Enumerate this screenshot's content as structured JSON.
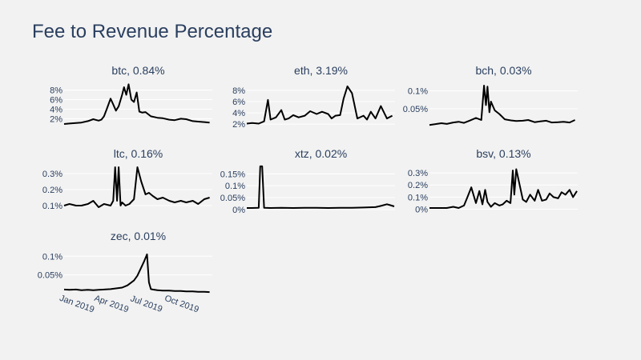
{
  "title": "Fee to Revenue Percentage",
  "chart_data": {
    "type": "line",
    "title": "Fee to Revenue Percentage",
    "xlabel": "",
    "ylabel": "",
    "grid": true,
    "x_range": [
      "2018-12-01",
      "2019-12-22"
    ],
    "x_ticks": [
      "Jan 2019",
      "Apr 2019",
      "Jul 2019",
      "Oct 2019"
    ],
    "colors": {
      "line": "#000000",
      "grid": "#ffffff",
      "background": "#f2f2f2",
      "text": "#2a3f5f"
    },
    "panels": [
      {
        "name": "btc",
        "title": "btc, 0.84%",
        "ylim": [
          0.4,
          9.6
        ],
        "y_ticks": [
          "2%",
          "4%",
          "6%",
          "8%"
        ],
        "y_tick_values": [
          2,
          4,
          6,
          8
        ],
        "x": [
          "2018-12-01",
          "2018-12-15",
          "2019-01-01",
          "2019-01-15",
          "2019-02-01",
          "2019-02-15",
          "2019-03-01",
          "2019-03-08",
          "2019-03-15",
          "2019-03-22",
          "2019-04-01",
          "2019-04-08",
          "2019-04-15",
          "2019-04-22",
          "2019-05-01",
          "2019-05-06",
          "2019-05-12",
          "2019-05-18",
          "2019-05-25",
          "2019-06-01",
          "2019-06-08",
          "2019-06-15",
          "2019-06-22",
          "2019-07-01",
          "2019-07-15",
          "2019-08-01",
          "2019-08-15",
          "2019-09-01",
          "2019-09-15",
          "2019-10-01",
          "2019-10-15",
          "2019-11-01",
          "2019-11-15",
          "2019-12-01",
          "2019-12-15"
        ],
        "y": [
          0.9,
          1.0,
          1.1,
          1.2,
          1.5,
          1.9,
          1.6,
          1.8,
          2.5,
          4.0,
          6.2,
          5.0,
          3.7,
          4.6,
          7.0,
          8.6,
          7.0,
          9.2,
          6.0,
          5.5,
          7.5,
          3.5,
          3.3,
          3.4,
          2.5,
          2.2,
          2.1,
          1.8,
          1.7,
          2.0,
          1.9,
          1.5,
          1.4,
          1.3,
          1.2
        ]
      },
      {
        "name": "eth",
        "title": "eth, 3.19%",
        "ylim": [
          1.6,
          9.4
        ],
        "y_ticks": [
          "2%",
          "4%",
          "6%",
          "8%"
        ],
        "y_tick_values": [
          2,
          4,
          6,
          8
        ],
        "x": [
          "2018-12-01",
          "2018-12-15",
          "2019-01-01",
          "2019-01-15",
          "2019-01-25",
          "2019-02-01",
          "2019-02-15",
          "2019-03-01",
          "2019-03-10",
          "2019-03-20",
          "2019-04-01",
          "2019-04-15",
          "2019-05-01",
          "2019-05-15",
          "2019-06-01",
          "2019-06-15",
          "2019-07-01",
          "2019-07-10",
          "2019-07-20",
          "2019-08-01",
          "2019-08-10",
          "2019-08-20",
          "2019-09-01",
          "2019-09-15",
          "2019-10-01",
          "2019-10-10",
          "2019-10-20",
          "2019-11-01",
          "2019-11-15",
          "2019-12-01",
          "2019-12-15"
        ],
        "y": [
          2.1,
          2.2,
          2.1,
          2.5,
          6.3,
          2.8,
          3.2,
          4.5,
          2.8,
          3.0,
          3.6,
          3.2,
          3.5,
          4.3,
          3.8,
          4.2,
          3.8,
          3.0,
          3.5,
          3.6,
          6.5,
          8.7,
          7.5,
          3.0,
          3.5,
          2.8,
          4.2,
          3.0,
          5.2,
          3.0,
          3.5
        ]
      },
      {
        "name": "bch",
        "title": "bch, 0.03%",
        "ylim": [
          0.0,
          0.124
        ],
        "y_ticks": [
          "0.05%",
          "0.1%"
        ],
        "y_tick_values": [
          0.05,
          0.1
        ],
        "x": [
          "2018-12-01",
          "2018-12-15",
          "2019-01-01",
          "2019-01-15",
          "2019-02-01",
          "2019-02-15",
          "2019-03-01",
          "2019-03-15",
          "2019-04-01",
          "2019-04-15",
          "2019-04-22",
          "2019-04-27",
          "2019-05-01",
          "2019-05-06",
          "2019-05-10",
          "2019-05-20",
          "2019-06-01",
          "2019-06-15",
          "2019-07-01",
          "2019-07-15",
          "2019-08-01",
          "2019-08-15",
          "2019-09-01",
          "2019-09-15",
          "2019-10-01",
          "2019-10-15",
          "2019-11-01",
          "2019-11-15",
          "2019-12-01",
          "2019-12-15"
        ],
        "y": [
          0.004,
          0.006,
          0.009,
          0.007,
          0.011,
          0.013,
          0.01,
          0.016,
          0.024,
          0.018,
          0.115,
          0.06,
          0.112,
          0.04,
          0.07,
          0.045,
          0.035,
          0.02,
          0.017,
          0.015,
          0.016,
          0.018,
          0.012,
          0.014,
          0.016,
          0.011,
          0.012,
          0.013,
          0.011,
          0.018
        ]
      },
      {
        "name": "ltc",
        "title": "ltc, 0.16%",
        "ylim": [
          0.07,
          0.35
        ],
        "y_ticks": [
          "0.1%",
          "0.2%",
          "0.3%"
        ],
        "y_tick_values": [
          0.1,
          0.2,
          0.3
        ],
        "x": [
          "2018-12-01",
          "2018-12-15",
          "2019-01-01",
          "2019-01-15",
          "2019-02-01",
          "2019-02-15",
          "2019-03-01",
          "2019-03-15",
          "2019-04-01",
          "2019-04-08",
          "2019-04-13",
          "2019-04-18",
          "2019-04-22",
          "2019-04-27",
          "2019-05-01",
          "2019-05-10",
          "2019-05-20",
          "2019-06-01",
          "2019-06-10",
          "2019-06-20",
          "2019-07-01",
          "2019-07-10",
          "2019-07-20",
          "2019-08-01",
          "2019-08-15",
          "2019-09-01",
          "2019-09-15",
          "2019-10-01",
          "2019-10-15",
          "2019-11-01",
          "2019-11-15",
          "2019-12-01",
          "2019-12-15"
        ],
        "y": [
          0.1,
          0.11,
          0.1,
          0.1,
          0.11,
          0.13,
          0.09,
          0.11,
          0.1,
          0.13,
          0.34,
          0.13,
          0.34,
          0.1,
          0.12,
          0.1,
          0.11,
          0.14,
          0.34,
          0.25,
          0.17,
          0.18,
          0.16,
          0.14,
          0.15,
          0.13,
          0.12,
          0.13,
          0.12,
          0.13,
          0.11,
          0.14,
          0.15
        ]
      },
      {
        "name": "xtz",
        "title": "xtz, 0.02%",
        "ylim": [
          -0.004,
          0.185
        ],
        "y_ticks": [
          "0%",
          "0.05%",
          "0.1%",
          "0.15%"
        ],
        "y_tick_values": [
          0,
          0.05,
          0.1,
          0.15
        ],
        "x": [
          "2018-12-01",
          "2018-12-15",
          "2019-01-01",
          "2019-01-05",
          "2019-01-10",
          "2019-01-15",
          "2019-02-01",
          "2019-03-01",
          "2019-04-01",
          "2019-05-01",
          "2019-06-01",
          "2019-07-01",
          "2019-08-01",
          "2019-09-01",
          "2019-10-01",
          "2019-11-01",
          "2019-11-15",
          "2019-12-01",
          "2019-12-10",
          "2019-12-20"
        ],
        "y": [
          0.006,
          0.006,
          0.007,
          0.182,
          0.182,
          0.007,
          0.006,
          0.007,
          0.006,
          0.007,
          0.007,
          0.006,
          0.007,
          0.007,
          0.008,
          0.01,
          0.015,
          0.022,
          0.018,
          0.013
        ]
      },
      {
        "name": "bsv",
        "title": "bsv, 0.13%",
        "ylim": [
          -0.01,
          0.36
        ],
        "y_ticks": [
          "0%",
          "0.1%",
          "0.2%",
          "0.3%"
        ],
        "y_tick_values": [
          0,
          0.1,
          0.2,
          0.3
        ],
        "x": [
          "2018-12-01",
          "2018-12-15",
          "2019-01-01",
          "2019-01-15",
          "2019-02-01",
          "2019-02-15",
          "2019-03-01",
          "2019-03-10",
          "2019-03-20",
          "2019-04-01",
          "2019-04-10",
          "2019-04-18",
          "2019-04-25",
          "2019-05-01",
          "2019-05-10",
          "2019-05-20",
          "2019-06-01",
          "2019-06-10",
          "2019-06-20",
          "2019-06-30",
          "2019-07-06",
          "2019-07-10",
          "2019-07-15",
          "2019-08-01",
          "2019-08-10",
          "2019-08-20",
          "2019-09-01",
          "2019-09-10",
          "2019-09-20",
          "2019-10-01",
          "2019-10-10",
          "2019-10-20",
          "2019-11-01",
          "2019-11-10",
          "2019-11-20",
          "2019-12-01",
          "2019-12-10",
          "2019-12-20"
        ],
        "y": [
          0.01,
          0.01,
          0.01,
          0.01,
          0.02,
          0.01,
          0.03,
          0.1,
          0.18,
          0.05,
          0.15,
          0.04,
          0.16,
          0.06,
          0.02,
          0.05,
          0.03,
          0.04,
          0.07,
          0.05,
          0.32,
          0.12,
          0.33,
          0.08,
          0.06,
          0.12,
          0.07,
          0.16,
          0.07,
          0.08,
          0.13,
          0.1,
          0.09,
          0.14,
          0.12,
          0.16,
          0.1,
          0.15
        ]
      },
      {
        "name": "zec",
        "title": "zec, 0.01%",
        "ylim": [
          0.0,
          0.122
        ],
        "y_ticks": [
          "0.05%",
          "0.1%"
        ],
        "y_tick_values": [
          0.05,
          0.1
        ],
        "x": [
          "2018-12-01",
          "2018-12-15",
          "2019-01-01",
          "2019-01-15",
          "2019-02-01",
          "2019-02-15",
          "2019-03-01",
          "2019-03-15",
          "2019-04-01",
          "2019-04-15",
          "2019-05-01",
          "2019-05-15",
          "2019-06-01",
          "2019-06-10",
          "2019-06-20",
          "2019-06-28",
          "2019-07-05",
          "2019-07-10",
          "2019-07-15",
          "2019-07-20",
          "2019-08-01",
          "2019-08-15",
          "2019-09-01",
          "2019-09-15",
          "2019-10-01",
          "2019-10-15",
          "2019-11-01",
          "2019-11-15",
          "2019-12-01",
          "2019-12-15"
        ],
        "y": [
          0.011,
          0.01,
          0.011,
          0.009,
          0.01,
          0.009,
          0.01,
          0.011,
          0.012,
          0.014,
          0.016,
          0.022,
          0.035,
          0.048,
          0.07,
          0.088,
          0.105,
          0.03,
          0.012,
          0.011,
          0.009,
          0.008,
          0.008,
          0.007,
          0.007,
          0.006,
          0.006,
          0.005,
          0.005,
          0.004
        ]
      }
    ]
  }
}
